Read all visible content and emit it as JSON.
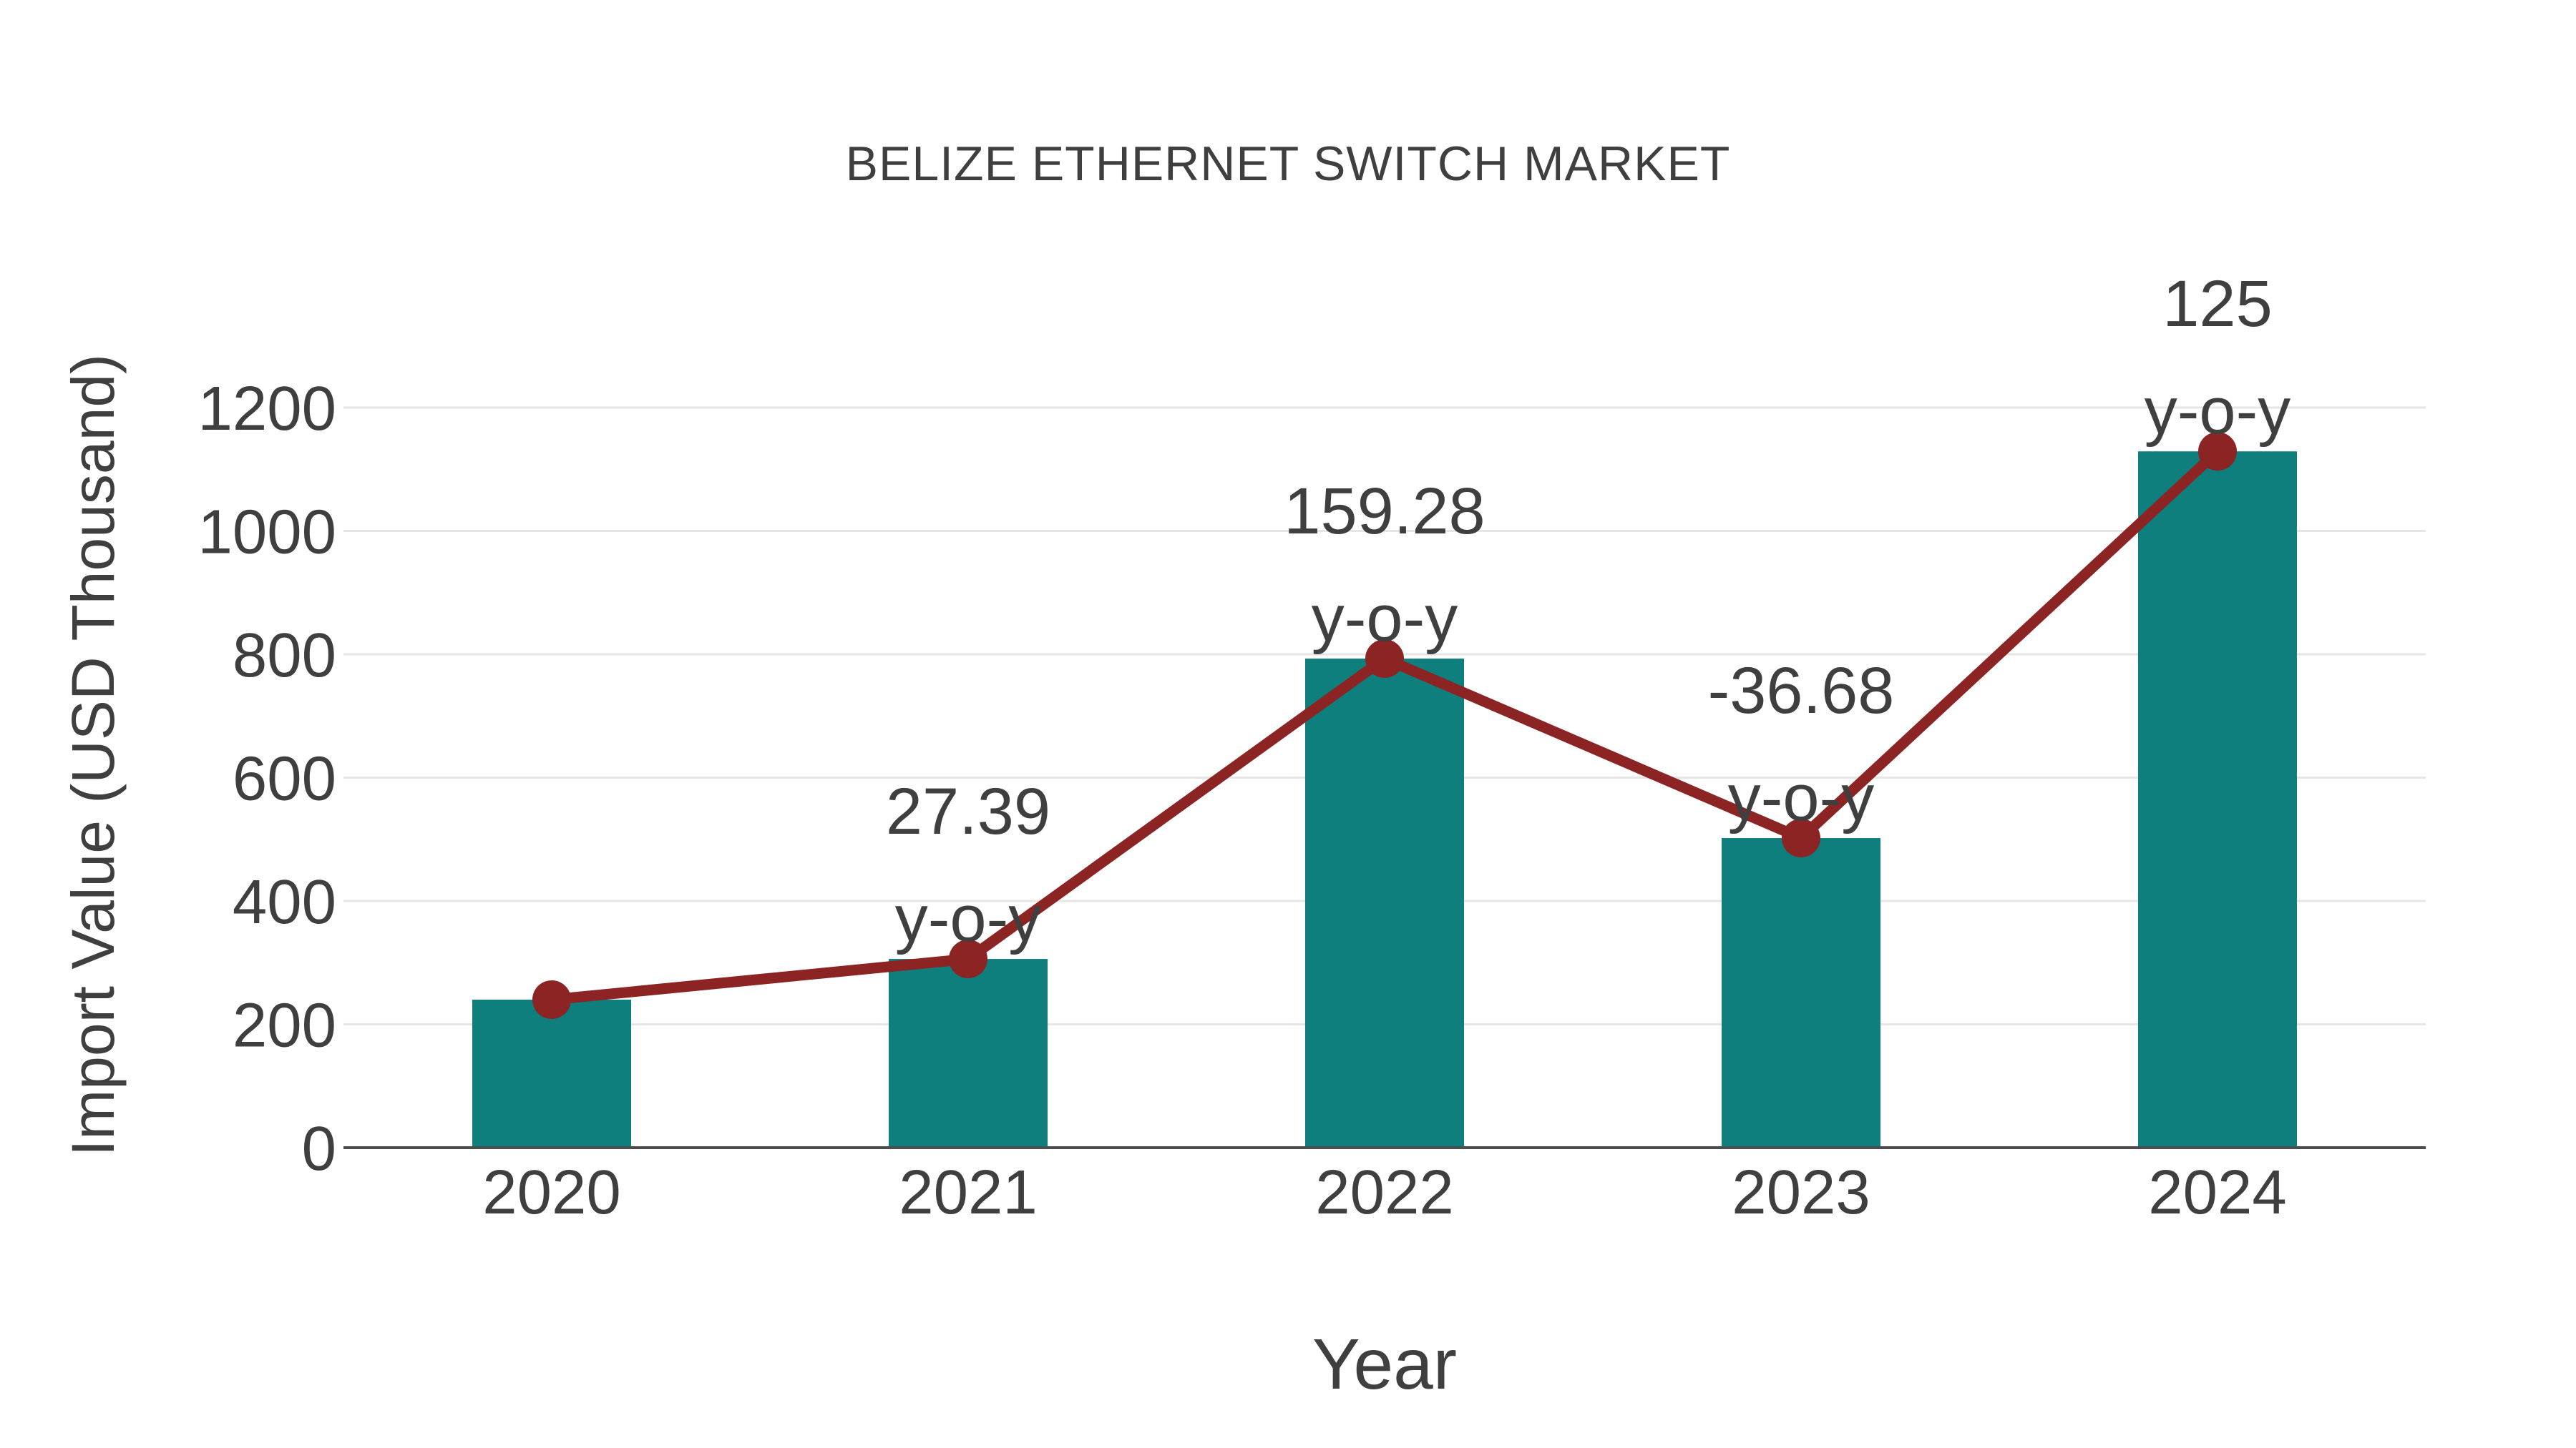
{
  "page": {
    "background": "#ffffff"
  },
  "chart_data": {
    "type": "bar",
    "title": "BELIZE ETHERNET SWITCH MARKET",
    "xlabel": "Year",
    "ylabel": "Import Value (USD Thousand)",
    "categories": [
      "2020",
      "2021",
      "2022",
      "2023",
      "2024"
    ],
    "series": [
      {
        "name": "import-value-bars",
        "type": "bar",
        "values": [
          240,
          306,
          793,
          502,
          1129
        ]
      },
      {
        "name": "import-value-trend-line",
        "type": "line",
        "values": [
          240,
          306,
          793,
          502,
          1129
        ]
      }
    ],
    "annotations": [
      {
        "category": "2021",
        "value_label": "27.39",
        "suffix": "y-o-y"
      },
      {
        "category": "2022",
        "value_label": "159.28",
        "suffix": "y-o-y"
      },
      {
        "category": "2023",
        "value_label": "-36.68",
        "suffix": "y-o-y"
      },
      {
        "category": "2024",
        "value_label": "125",
        "suffix": "y-o-y"
      }
    ],
    "yticks": [
      0,
      200,
      400,
      600,
      800,
      1000,
      1200
    ],
    "ylim": [
      0,
      1200
    ],
    "grid": "horizontal",
    "legend": "none",
    "colors": {
      "bar": "#0e7f7d",
      "line": "#8b2423",
      "marker": "#8b2423",
      "grid": "#e6e6e6",
      "axis": "#4d4d4d",
      "text": "#3f3f3f"
    }
  }
}
